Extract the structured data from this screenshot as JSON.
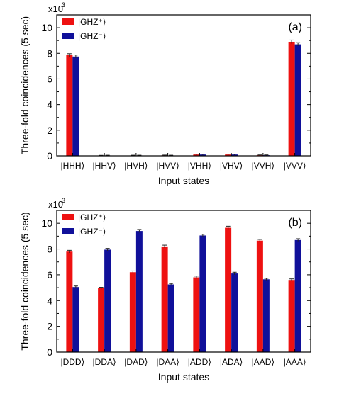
{
  "colors": {
    "series_plus": "#ee1111",
    "series_minus": "#10109a",
    "axis": "#000000",
    "background": "#ffffff"
  },
  "chart_data": [
    {
      "type": "bar",
      "panel_label": "(a)",
      "multiplier_label": "x10",
      "multiplier_exp": "3",
      "xlabel": "Input states",
      "ylabel": "Three-fold coincidences (5 sec)",
      "ylim": [
        0,
        11
      ],
      "yticks": [
        0,
        2,
        4,
        6,
        8,
        10
      ],
      "grid": false,
      "legend_position": "top-left",
      "categories": [
        "|HHH⟩",
        "|HHV⟩",
        "|HVH⟩",
        "|HVV⟩",
        "|VHH⟩",
        "|VHV⟩",
        "|VVH⟩",
        "|VVV⟩"
      ],
      "series": [
        {
          "name": "|GHZ⁺⟩",
          "color": "#ee1111",
          "values": [
            7.85,
            0.02,
            0.03,
            0.04,
            0.1,
            0.1,
            0.05,
            8.9
          ],
          "errors": [
            0.12,
            0.02,
            0.02,
            0.02,
            0.03,
            0.03,
            0.02,
            0.14
          ]
        },
        {
          "name": "|GHZ⁻⟩",
          "color": "#10109a",
          "values": [
            7.75,
            0.03,
            0.03,
            0.03,
            0.1,
            0.1,
            0.05,
            8.7
          ],
          "errors": [
            0.12,
            0.02,
            0.02,
            0.02,
            0.03,
            0.03,
            0.02,
            0.13
          ]
        }
      ]
    },
    {
      "type": "bar",
      "panel_label": "(b)",
      "multiplier_label": "x10",
      "multiplier_exp": "3",
      "xlabel": "Input states",
      "ylabel": "Three-fold coincidences (5 sec)",
      "ylim": [
        0,
        11
      ],
      "yticks": [
        0,
        2,
        4,
        6,
        8,
        10
      ],
      "grid": false,
      "legend_position": "top-left",
      "categories": [
        "|DDD⟩",
        "|DDA⟩",
        "|DAD⟩",
        "|DAA⟩",
        "|ADD⟩",
        "|ADA⟩",
        "|AAD⟩",
        "|AAA⟩"
      ],
      "series": [
        {
          "name": "|GHZ⁺⟩",
          "color": "#ee1111",
          "values": [
            7.8,
            4.95,
            6.2,
            8.2,
            5.8,
            9.65,
            8.65,
            5.6
          ],
          "errors": [
            0.1,
            0.08,
            0.1,
            0.1,
            0.1,
            0.12,
            0.1,
            0.08
          ]
        },
        {
          "name": "|GHZ⁻⟩",
          "color": "#10109a",
          "values": [
            5.05,
            7.95,
            9.4,
            5.25,
            9.05,
            6.1,
            5.65,
            8.7
          ],
          "errors": [
            0.08,
            0.1,
            0.12,
            0.08,
            0.1,
            0.1,
            0.08,
            0.1
          ]
        }
      ]
    }
  ]
}
